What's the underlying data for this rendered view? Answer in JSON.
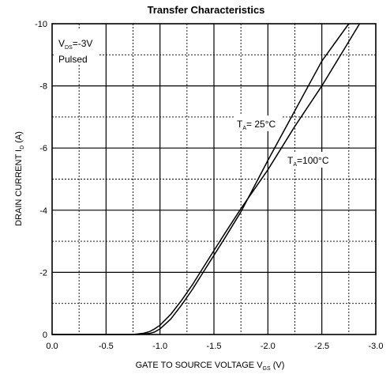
{
  "chart_data": {
    "type": "line",
    "title": "Transfer Characteristics",
    "xlabel": {
      "main": "GATE TO SOURCE VOLTAGE V",
      "sub": "GS",
      "unit": " (V)"
    },
    "ylabel": {
      "main": "DRAIN CURRENT I",
      "sub": "D",
      "unit": " (A)"
    },
    "xlim": [
      0,
      -3.0
    ],
    "ylim": [
      0,
      -10
    ],
    "x_ticks": [
      0,
      -0.5,
      -1.0,
      -1.5,
      -2.0,
      -2.5,
      -3.0
    ],
    "x_tick_labels": [
      "0.0",
      "-0.5",
      "-1.0",
      "-1.5",
      "-2.0",
      "-2.5",
      "-3.0"
    ],
    "y_ticks": [
      0,
      -2,
      -4,
      -6,
      -8,
      -10
    ],
    "y_tick_labels": [
      "0",
      "-2",
      "-4",
      "-6",
      "-8",
      "-10"
    ],
    "grid": true,
    "conditions": {
      "vds_main": "V",
      "vds_sub": "DS",
      "vds_value": "=-3V",
      "mode": "Pulsed"
    },
    "series": [
      {
        "name": "T = 25°C",
        "label": {
          "main": "T",
          "sub": "A",
          "value": "= 25°C"
        },
        "x": [
          0,
          -0.8,
          -0.9,
          -0.95,
          -1.0,
          -1.1,
          -1.2,
          -1.3,
          -1.4,
          -1.5,
          -1.6,
          -1.75,
          -2.0,
          -2.25,
          -2.5,
          -2.75
        ],
        "y": [
          0,
          0,
          -0.03,
          -0.08,
          -0.18,
          -0.5,
          -0.95,
          -1.45,
          -2.0,
          -2.55,
          -3.1,
          -3.95,
          -5.6,
          -7.2,
          -8.8,
          -10.0
        ]
      },
      {
        "name": "T = 100°C",
        "label": {
          "main": "T",
          "sub": "A",
          "value": "=100°C"
        },
        "x": [
          0,
          -0.75,
          -0.85,
          -0.9,
          -0.95,
          -1.0,
          -1.1,
          -1.2,
          -1.3,
          -1.4,
          -1.5,
          -1.6,
          -1.75,
          -2.0,
          -2.25,
          -2.5,
          -2.85
        ],
        "y": [
          0,
          0,
          -0.04,
          -0.09,
          -0.18,
          -0.3,
          -0.65,
          -1.1,
          -1.6,
          -2.15,
          -2.7,
          -3.25,
          -4.05,
          -5.3,
          -6.7,
          -8.0,
          -10.0
        ]
      }
    ]
  }
}
